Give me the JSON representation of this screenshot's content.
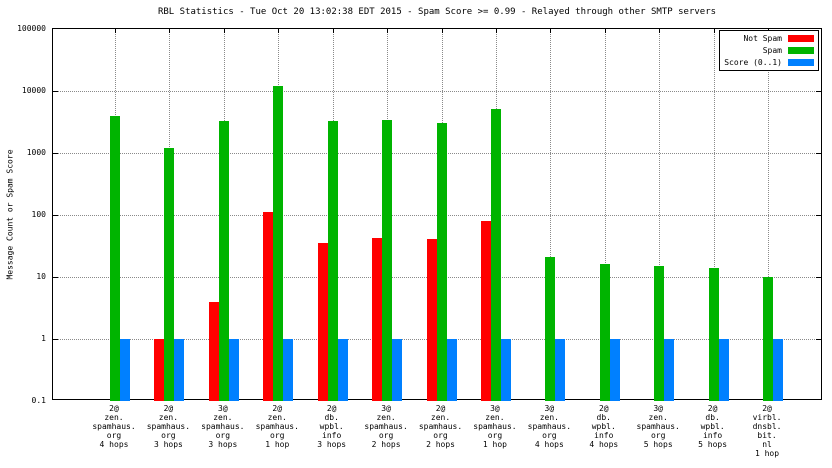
{
  "chart_data": {
    "type": "bar",
    "yscale": "log",
    "title": "RBL Statistics - Tue Oct 20 13:02:38 EDT 2015 - Spam Score >= 0.99 - Relayed through other SMTP servers",
    "ylabel": "Message Count or Spam Score",
    "xlabel": "",
    "ylim": [
      0.1,
      100000
    ],
    "ytics": [
      "100000",
      "10000",
      "1000",
      "100",
      "10",
      "1",
      "0.1"
    ],
    "grid": true,
    "legend_position": "top-right",
    "categories": [
      [
        "2@",
        "zen.",
        "spamhaus.",
        "org",
        "4 hops"
      ],
      [
        "2@",
        "zen.",
        "spamhaus.",
        "org",
        "3 hops"
      ],
      [
        "3@",
        "zen.",
        "spamhaus.",
        "org",
        "3 hops"
      ],
      [
        "2@",
        "zen.",
        "spamhaus.",
        "org",
        "1 hop"
      ],
      [
        "2@",
        "db.",
        "wpbl.",
        "info",
        "3 hops"
      ],
      [
        "3@",
        "zen.",
        "spamhaus.",
        "org",
        "2 hops"
      ],
      [
        "2@",
        "zen.",
        "spamhaus.",
        "org",
        "2 hops"
      ],
      [
        "3@",
        "zen.",
        "spamhaus.",
        "org",
        "1 hop"
      ],
      [
        "3@",
        "zen.",
        "spamhaus.",
        "org",
        "4 hops"
      ],
      [
        "2@",
        "db.",
        "wpbl.",
        "info",
        "4 hops"
      ],
      [
        "3@",
        "zen.",
        "spamhaus.",
        "org",
        "5 hops"
      ],
      [
        "2@",
        "db.",
        "wpbl.",
        "info",
        "5 hops"
      ],
      [
        "2@",
        "virbl.",
        "dnsbl.",
        "bit.",
        "nl",
        "1 hop"
      ]
    ],
    "series": [
      {
        "name": "Not Spam",
        "color": "#ff0000",
        "values": [
          null,
          1,
          4,
          110,
          35,
          43,
          41,
          80,
          null,
          null,
          null,
          null,
          null
        ]
      },
      {
        "name": "Spam",
        "color": "#00b400",
        "values": [
          3900,
          1200,
          3300,
          12000,
          3300,
          3400,
          3000,
          5200,
          21,
          16,
          15,
          14,
          10
        ]
      },
      {
        "name": "Score (0..1)",
        "color": "#0080ff",
        "values": [
          1,
          1,
          1,
          1,
          1,
          1,
          1,
          1,
          1,
          1,
          1,
          1,
          1
        ]
      }
    ]
  }
}
